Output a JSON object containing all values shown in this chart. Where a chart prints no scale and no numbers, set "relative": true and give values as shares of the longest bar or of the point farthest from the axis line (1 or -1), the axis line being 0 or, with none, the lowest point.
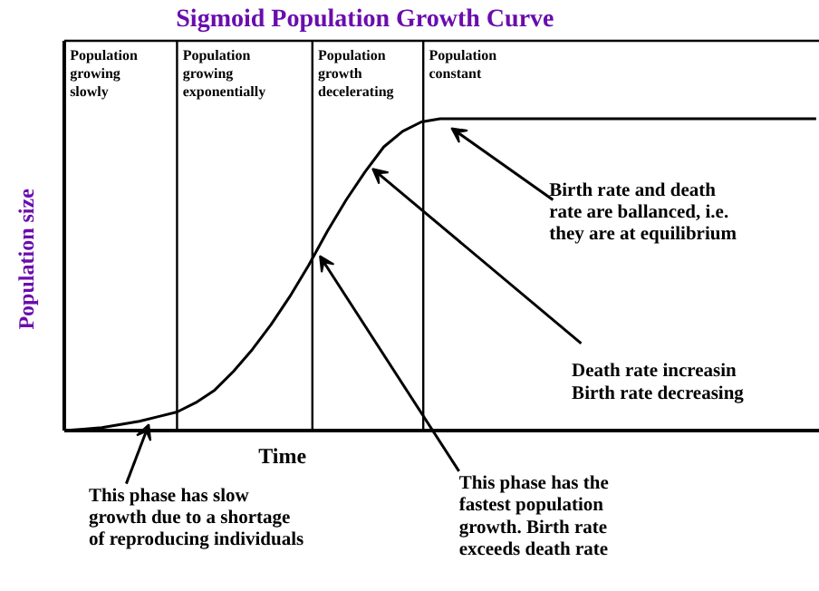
{
  "chart_data": {
    "type": "line",
    "title": "Sigmoid Population Growth Curve",
    "xlabel": "Time",
    "ylabel": "Population size",
    "relative": true,
    "color": "#000000",
    "grid": "x",
    "categories": [
      null,
      null,
      null,
      null,
      null,
      null,
      null,
      null,
      null,
      null,
      null,
      null,
      null,
      null,
      null,
      null,
      null,
      null,
      null,
      null,
      null,
      null,
      null,
      null,
      null,
      null,
      null,
      null,
      null,
      null,
      null,
      null,
      null,
      null,
      null,
      null,
      null,
      null,
      null,
      null,
      null
    ],
    "values": [
      0.0,
      0.005,
      0.01,
      0.02,
      0.03,
      0.045,
      0.06,
      0.09,
      0.13,
      0.19,
      0.26,
      0.34,
      0.43,
      0.53,
      0.64,
      0.74,
      0.83,
      0.91,
      0.96,
      0.99,
      1.0,
      1.0,
      1.0,
      1.0,
      1.0,
      1.0,
      1.0,
      1.0,
      1.0,
      1.0,
      1.0,
      1.0,
      1.0,
      1.0,
      1.0,
      1.0,
      1.0,
      1.0,
      1.0,
      1.0,
      1.0
    ],
    "annotations": [
      "Population\ngrowing\nslowly",
      "Population\ngrowing\nexponentially",
      "Population\ngrowth\ndecelerating",
      "Population\nconstant",
      "Birth rate and death\nrate are ballanced, i.e.\nthey are at equilibrium",
      "Death rate increasin\nBirth rate decreasing",
      "This phase has slow\ngrowth due to a shortage\nof reproducing individuals",
      "This phase has the\nfastest population\ngrowth.  Birth rate\nexceeds death rate"
    ]
  }
}
